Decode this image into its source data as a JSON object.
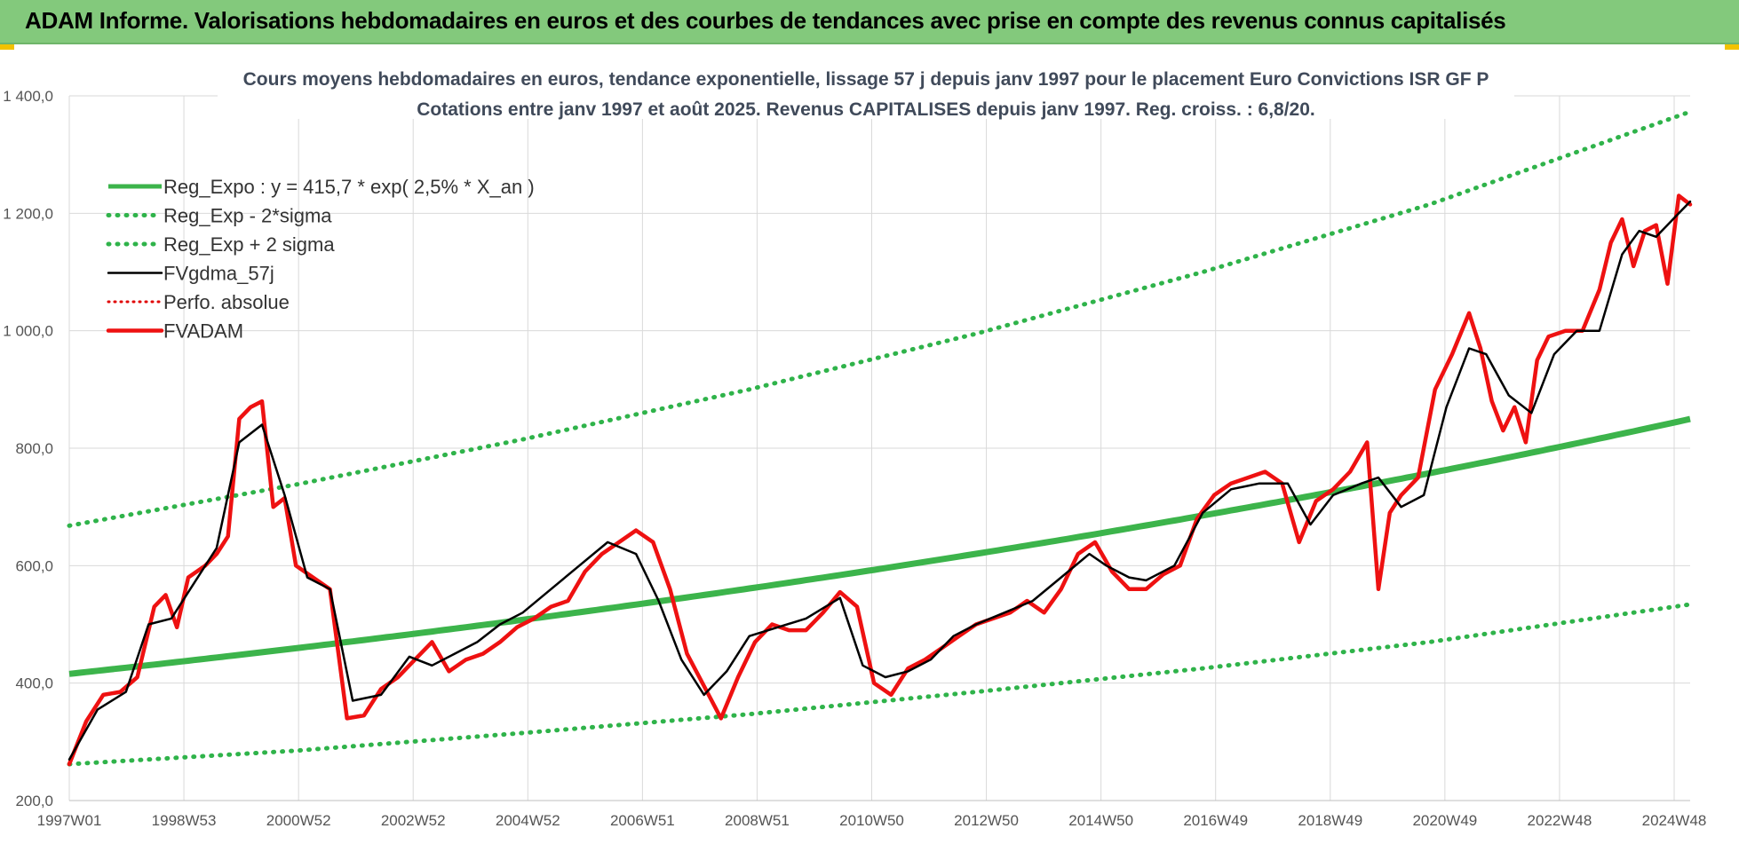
{
  "header": {
    "title": "ADAM Informe. Valorisations hebdomadaires en euros et des courbes de tendances avec prise en compte des revenus connus capitalisés"
  },
  "chart_data": {
    "type": "line",
    "title": "Cours moyens hebdomadaires en euros, tendance exponentielle, lissage 57 j depuis janv 1997  pour le placement Euro Convictions ISR GF P",
    "subtitle": "Cotations entre janv 1997 et août 2025. Revenus CAPITALISES depuis janv 1997. Reg. croiss. : 6,8/20.",
    "ylim": [
      200,
      1400
    ],
    "y_ticks": [
      "200,0",
      "400,0",
      "600,0",
      "800,0",
      "1 000,0",
      "1 200,0",
      "1 400,0"
    ],
    "x_ticks": [
      "1997W01",
      "1998W53",
      "2000W52",
      "2002W52",
      "2004W52",
      "2006W51",
      "2008W51",
      "2010W50",
      "2012W50",
      "2014W50",
      "2016W49",
      "2018W49",
      "2020W49",
      "2022W48",
      "2024W48"
    ],
    "x_range_years": [
      1997.0,
      2025.6
    ],
    "grid": true,
    "legend_position": "top-left",
    "colors": {
      "reg": "#3cb44b",
      "band": "#2fb34a",
      "smooth": "#000000",
      "perfo": "#e00000",
      "fvadam": "#ee1111"
    },
    "series": [
      {
        "name": "Reg_Expo : y = 415,7 * exp( 2,5% *  X_an )",
        "style": "solid-thick",
        "formula": {
          "a": 415.7,
          "b": 0.025
        },
        "x": [
          1997.0,
          2025.6
        ],
        "values": [
          415.7,
          849
        ]
      },
      {
        "name": "Reg_Exp - 2*sigma",
        "style": "dotted",
        "x": [
          1997.0,
          2001.0,
          2005.0,
          2009.0,
          2013.0,
          2017.0,
          2021.0,
          2025.6
        ],
        "values": [
          262,
          285,
          315,
          347,
          385,
          425,
          470,
          534
        ]
      },
      {
        "name": "Reg_Exp + 2 sigma",
        "style": "dotted",
        "x": [
          1997.0,
          2001.0,
          2005.0,
          2009.0,
          2013.0,
          2017.0,
          2021.0,
          2025.6
        ],
        "values": [
          668,
          738,
          815,
          900,
          995,
          1100,
          1215,
          1373
        ]
      },
      {
        "name": "FVgdma_57j",
        "style": "solid-thin",
        "x": [
          1997.0,
          1997.5,
          1998.0,
          1998.4,
          1998.8,
          1999.2,
          1999.6,
          2000.0,
          2000.4,
          2000.8,
          2001.2,
          2001.6,
          2002.0,
          2002.5,
          2003.0,
          2003.4,
          2003.8,
          2004.2,
          2004.6,
          2005.0,
          2005.5,
          2006.0,
          2006.5,
          2007.0,
          2007.4,
          2007.8,
          2008.2,
          2008.6,
          2009.0,
          2009.5,
          2010.0,
          2010.6,
          2011.0,
          2011.4,
          2011.8,
          2012.2,
          2012.6,
          2013.0,
          2013.5,
          2014.0,
          2014.5,
          2015.0,
          2015.3,
          2015.7,
          2016.0,
          2016.5,
          2017.0,
          2017.5,
          2018.0,
          2018.5,
          2018.9,
          2019.3,
          2019.8,
          2020.1,
          2020.5,
          2020.9,
          2021.3,
          2021.7,
          2022.0,
          2022.4,
          2022.8,
          2023.2,
          2023.6,
          2024.0,
          2024.4,
          2024.7,
          2025.0,
          2025.4,
          2025.6
        ],
        "values": [
          270,
          355,
          385,
          500,
          510,
          570,
          630,
          810,
          840,
          720,
          580,
          560,
          370,
          380,
          445,
          430,
          450,
          470,
          500,
          520,
          560,
          600,
          640,
          620,
          540,
          440,
          380,
          420,
          480,
          495,
          510,
          545,
          430,
          410,
          420,
          440,
          480,
          500,
          520,
          540,
          580,
          620,
          600,
          580,
          575,
          600,
          690,
          730,
          740,
          740,
          670,
          720,
          740,
          750,
          700,
          720,
          870,
          970,
          960,
          890,
          860,
          960,
          1000,
          1000,
          1130,
          1170,
          1160,
          1200,
          1220
        ]
      },
      {
        "name": "Perfo. absolue",
        "style": "dotted-red",
        "x": [],
        "values": []
      },
      {
        "name": "FVADAM",
        "style": "solid-red",
        "x": [
          1997.0,
          1997.3,
          1997.6,
          1997.9,
          1998.2,
          1998.5,
          1998.7,
          1998.9,
          1999.1,
          1999.4,
          1999.6,
          1999.8,
          2000.0,
          2000.2,
          2000.4,
          2000.6,
          2000.8,
          2001.0,
          2001.3,
          2001.6,
          2001.9,
          2002.2,
          2002.5,
          2002.8,
          2003.1,
          2003.4,
          2003.7,
          2004.0,
          2004.3,
          2004.6,
          2004.9,
          2005.2,
          2005.5,
          2005.8,
          2006.1,
          2006.4,
          2006.7,
          2007.0,
          2007.3,
          2007.6,
          2007.9,
          2008.2,
          2008.5,
          2008.8,
          2009.1,
          2009.4,
          2009.7,
          2010.0,
          2010.3,
          2010.6,
          2010.9,
          2011.2,
          2011.5,
          2011.8,
          2012.1,
          2012.4,
          2012.7,
          2013.0,
          2013.3,
          2013.6,
          2013.9,
          2014.2,
          2014.5,
          2014.8,
          2015.1,
          2015.4,
          2015.7,
          2016.0,
          2016.3,
          2016.6,
          2016.9,
          2017.2,
          2017.5,
          2017.8,
          2018.1,
          2018.4,
          2018.7,
          2019.0,
          2019.3,
          2019.6,
          2019.9,
          2020.1,
          2020.3,
          2020.5,
          2020.8,
          2021.1,
          2021.4,
          2021.7,
          2021.9,
          2022.1,
          2022.3,
          2022.5,
          2022.7,
          2022.9,
          2023.1,
          2023.4,
          2023.7,
          2024.0,
          2024.2,
          2024.4,
          2024.6,
          2024.8,
          2025.0,
          2025.2,
          2025.4,
          2025.6
        ],
        "values": [
          262,
          335,
          380,
          385,
          410,
          530,
          550,
          495,
          580,
          600,
          620,
          650,
          850,
          870,
          880,
          700,
          715,
          600,
          580,
          560,
          340,
          345,
          390,
          410,
          440,
          470,
          420,
          440,
          450,
          470,
          495,
          510,
          530,
          540,
          590,
          620,
          640,
          660,
          640,
          560,
          450,
          395,
          340,
          410,
          470,
          500,
          490,
          490,
          520,
          555,
          530,
          400,
          380,
          425,
          440,
          460,
          480,
          500,
          510,
          520,
          540,
          520,
          560,
          620,
          640,
          590,
          560,
          560,
          585,
          600,
          680,
          720,
          740,
          750,
          760,
          740,
          640,
          710,
          730,
          760,
          810,
          560,
          690,
          720,
          750,
          900,
          960,
          1030,
          970,
          880,
          830,
          870,
          810,
          950,
          990,
          1000,
          1000,
          1070,
          1150,
          1190,
          1110,
          1170,
          1180,
          1080,
          1230,
          1215
        ]
      }
    ]
  }
}
